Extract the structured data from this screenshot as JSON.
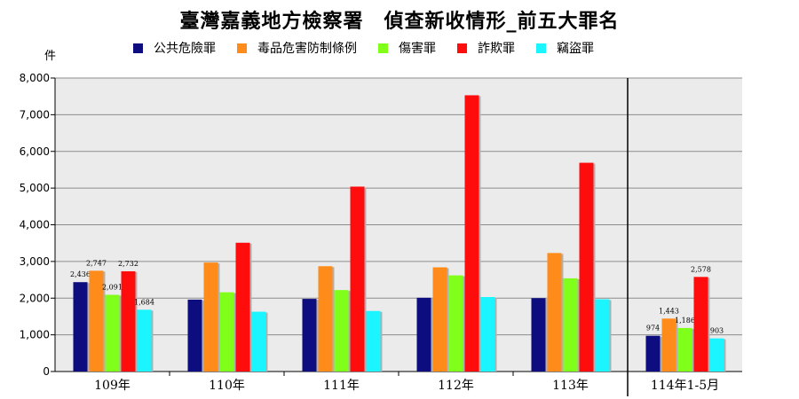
{
  "chart_data": {
    "type": "bar",
    "title": "臺灣嘉義地方檢察署　偵查新收情形_前五大罪名",
    "ylabel": "件",
    "xlabel": "",
    "ylim": [
      0,
      8000
    ],
    "yticks": [
      0,
      1000,
      2000,
      3000,
      4000,
      5000,
      6000,
      7000,
      8000
    ],
    "ytick_labels": [
      "0",
      "1,000",
      "2,000",
      "3,000",
      "4,000",
      "5,000",
      "6,000",
      "7,000",
      "8,000"
    ],
    "grid": true,
    "legend_position": "top",
    "categories": [
      "109年",
      "110年",
      "111年",
      "112年",
      "113年",
      "114年1-5月"
    ],
    "series": [
      {
        "name": "公共危險罪",
        "color": "#0d0d80",
        "values": [
          2436,
          1960,
          1980,
          2010,
          2000,
          974
        ],
        "data_labels": [
          "2,436",
          null,
          null,
          null,
          null,
          "974"
        ]
      },
      {
        "name": "毒品危害防制條例",
        "color": "#ff8c1a",
        "values": [
          2747,
          2970,
          2870,
          2840,
          3230,
          1443
        ],
        "data_labels": [
          "2,747",
          null,
          null,
          null,
          null,
          "1,443"
        ]
      },
      {
        "name": "傷害罪",
        "color": "#80ff1a",
        "values": [
          2091,
          2160,
          2220,
          2620,
          2540,
          1186
        ],
        "data_labels": [
          "2,091",
          null,
          null,
          null,
          null,
          "1,186"
        ]
      },
      {
        "name": "詐欺罪",
        "color": "#ff0d0d",
        "values": [
          2732,
          3510,
          5040,
          7530,
          5690,
          2578
        ],
        "data_labels": [
          "2,732",
          null,
          null,
          null,
          null,
          "2,578"
        ]
      },
      {
        "name": "竊盜罪",
        "color": "#1af5ff",
        "values": [
          1684,
          1630,
          1650,
          2030,
          1970,
          903
        ],
        "data_labels": [
          "1,684",
          null,
          null,
          null,
          null,
          "903"
        ]
      }
    ],
    "divider_before_category": "114年1-5月",
    "plot_background": "#ebebeb"
  }
}
